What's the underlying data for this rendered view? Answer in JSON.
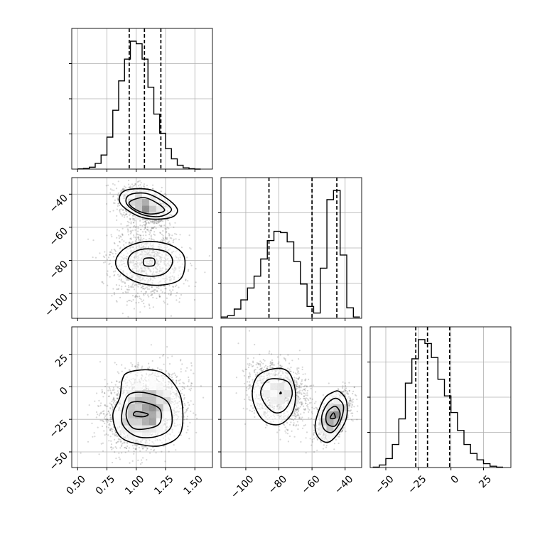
{
  "chart_data": {
    "type": "corner-plot",
    "description_note": "",
    "parameters": [
      {
        "range": [
          0.45,
          1.65
        ],
        "ticks": [
          0.5,
          0.75,
          1.0,
          1.25,
          1.5
        ],
        "tick_labels": [
          "0.50",
          "0.75",
          "1.00",
          "1.25",
          "1.50"
        ],
        "quantiles": [
          0.94,
          1.07,
          1.21
        ]
      },
      {
        "range": [
          -115,
          -30
        ],
        "ticks": [
          -100,
          -80,
          -60,
          -40
        ],
        "tick_labels": [
          "−100",
          "−80",
          "−60",
          "−40"
        ],
        "quantiles": [
          -86,
          -60,
          -45
        ]
      },
      {
        "range": [
          -62,
          46
        ],
        "ticks": [
          -50,
          -25,
          0,
          25
        ],
        "tick_labels": [
          "−50",
          "−25",
          "0",
          "25"
        ],
        "quantiles": [
          -27,
          -18,
          -1
        ]
      }
    ],
    "histograms": [
      {
        "param": 0,
        "bins": [
          0.5,
          0.55,
          0.6,
          0.65,
          0.7,
          0.75,
          0.8,
          0.85,
          0.9,
          0.95,
          1.0,
          1.05,
          1.1,
          1.15,
          1.2,
          1.25,
          1.3,
          1.35,
          1.4,
          1.45,
          1.5,
          1.55
        ],
        "counts": [
          0.2,
          0.5,
          1.5,
          4.5,
          11,
          25,
          46,
          69,
          86,
          100,
          98,
          86,
          64,
          43,
          28,
          16,
          8,
          3,
          1,
          0.3,
          0
        ]
      },
      {
        "param": 1,
        "bins": [
          -115,
          -111,
          -107,
          -103,
          -99,
          -95,
          -91,
          -87,
          -83,
          -79,
          -75,
          -71,
          -67,
          -63,
          -59,
          -55,
          -51,
          -47,
          -43,
          -39,
          -35,
          -31
        ],
        "counts": [
          1,
          2,
          7,
          14,
          23,
          32,
          45,
          59,
          66,
          65,
          58,
          43,
          26,
          9,
          4,
          38,
          90,
          97,
          48,
          8,
          1
        ]
      },
      {
        "param": 2,
        "bins": [
          -60,
          -55,
          -50,
          -45,
          -40,
          -35,
          -30,
          -25,
          -20,
          -15,
          -10,
          -5,
          0,
          5,
          10,
          15,
          20,
          25,
          30,
          35,
          40
        ],
        "counts": [
          0.3,
          2,
          7,
          18,
          38,
          66,
          85,
          100,
          97,
          86,
          69,
          56,
          43,
          29,
          18,
          11,
          6,
          3,
          1,
          0.3
        ]
      }
    ],
    "scatter_panels": [
      {
        "x_param": 0,
        "y_param": 1,
        "blobs": [
          {
            "center": [
              1.06,
              -47
            ],
            "sd": [
              0.1,
              5.5
            ],
            "rho": -0.35,
            "weight": 0.5
          },
          {
            "center": [
              1.09,
              -81
            ],
            "sd": [
              0.15,
              11
            ],
            "rho": 0.0,
            "weight": 0.5
          }
        ],
        "contours": [
          {
            "points": [
              [
                1.1,
                -37
              ],
              [
                1.25,
                -42
              ],
              [
                1.35,
                -49
              ],
              [
                1.3,
                -54
              ],
              [
                1.12,
                -55
              ],
              [
                0.98,
                -52
              ],
              [
                0.86,
                -45
              ],
              [
                0.9,
                -38
              ]
            ]
          },
          {
            "points": [
              [
                1.08,
                -39.5
              ],
              [
                1.22,
                -44
              ],
              [
                1.3,
                -49.5
              ],
              [
                1.2,
                -53.5
              ],
              [
                1.04,
                -52
              ],
              [
                0.92,
                -46
              ],
              [
                0.94,
                -40.5
              ]
            ]
          },
          {
            "points": [
              [
                1.06,
                -42
              ],
              [
                1.18,
                -45.5
              ],
              [
                1.24,
                -50
              ],
              [
                1.12,
                -52
              ],
              [
                1.0,
                -49.5
              ],
              [
                0.94,
                -45
              ]
            ]
          },
          {
            "points": [
              [
                1.1,
                -68.5
              ],
              [
                1.3,
                -71
              ],
              [
                1.41,
                -78
              ],
              [
                1.38,
                -91
              ],
              [
                1.2,
                -95
              ],
              [
                1.0,
                -93
              ],
              [
                0.85,
                -86
              ],
              [
                0.83,
                -79
              ],
              [
                0.92,
                -72
              ]
            ]
          },
          {
            "points": [
              [
                1.1,
                -73
              ],
              [
                1.26,
                -75
              ],
              [
                1.31,
                -81
              ],
              [
                1.24,
                -88
              ],
              [
                1.1,
                -89.5
              ],
              [
                0.96,
                -86.5
              ],
              [
                0.93,
                -80
              ],
              [
                0.98,
                -75
              ]
            ]
          },
          {
            "points": [
              [
                1.07,
                -79
              ],
              [
                1.15,
                -79
              ],
              [
                1.15,
                -83
              ],
              [
                1.07,
                -83
              ]
            ]
          }
        ]
      },
      {
        "x_param": 0,
        "y_param": 2,
        "blobs": [
          {
            "center": [
              1.07,
              -18
            ],
            "sd": [
              0.16,
              14
            ],
            "rho": 0.2,
            "weight": 1.0
          }
        ],
        "contours": [
          {
            "points": [
              [
                0.93,
                11
              ],
              [
                1.1,
                13
              ],
              [
                1.25,
                9
              ],
              [
                1.38,
                -8
              ],
              [
                1.38,
                -35
              ],
              [
                1.22,
                -45
              ],
              [
                1.02,
                -44
              ],
              [
                0.86,
                -38
              ],
              [
                0.8,
                -22
              ],
              [
                0.86,
                -8
              ],
              [
                0.88,
                5
              ]
            ]
          },
          {
            "points": [
              [
                0.96,
                -5
              ],
              [
                1.1,
                -5
              ],
              [
                1.27,
                -12
              ],
              [
                1.3,
                -30
              ],
              [
                1.18,
                -38
              ],
              [
                1.0,
                -38
              ],
              [
                0.88,
                -28
              ],
              [
                0.9,
                -12
              ]
            ]
          },
          {
            "points": [
              [
                0.96,
                -12
              ],
              [
                1.07,
                -12
              ],
              [
                1.2,
                -17
              ],
              [
                1.2,
                -28
              ],
              [
                1.1,
                -32
              ],
              [
                0.98,
                -32
              ],
              [
                0.92,
                -25
              ],
              [
                0.92,
                -17
              ]
            ]
          },
          {
            "points": [
              [
                1.0,
                -19
              ],
              [
                1.1,
                -21
              ],
              [
                1.06,
                -23
              ],
              [
                0.98,
                -22
              ]
            ]
          }
        ]
      },
      {
        "x_param": 1,
        "y_param": 2,
        "blobs": [
          {
            "center": [
              -80,
              -5
            ],
            "sd": [
              9,
              12
            ],
            "rho": -0.3,
            "weight": 0.5
          },
          {
            "center": [
              -47,
              -23
            ],
            "sd": [
              5,
              9
            ],
            "rho": 0.55,
            "weight": 0.5
          }
        ],
        "contours": [
          {
            "points": [
              [
                -82,
                14
              ],
              [
                -74,
                11
              ],
              [
                -70,
                -4
              ],
              [
                -72,
                -20
              ],
              [
                -80,
                -29
              ],
              [
                -90,
                -25
              ],
              [
                -96,
                -8
              ],
              [
                -93,
                8
              ]
            ]
          },
          {
            "points": [
              [
                -80,
                6
              ],
              [
                -74,
                3
              ],
              [
                -72,
                -6
              ],
              [
                -76,
                -17
              ],
              [
                -82,
                -20
              ],
              [
                -88,
                -14
              ],
              [
                -91,
                -4
              ],
              [
                -87,
                5
              ]
            ]
          },
          {
            "points": [
              [
                -79,
                -4
              ],
              [
                -78.5,
                -5
              ],
              [
                -79.4,
                -5.4
              ]
            ]
          },
          {
            "points": [
              [
                -43,
                -4
              ],
              [
                -39,
                -12
              ],
              [
                -40,
                -27
              ],
              [
                -49,
                -42
              ],
              [
                -56,
                -39
              ],
              [
                -58,
                -28
              ],
              [
                -53,
                -10
              ],
              [
                -47,
                -4
              ]
            ]
          },
          {
            "points": [
              [
                -45,
                -9
              ],
              [
                -41,
                -15
              ],
              [
                -43,
                -27
              ],
              [
                -48,
                -35
              ],
              [
                -53,
                -32
              ],
              [
                -54,
                -22
              ],
              [
                -50,
                -12
              ]
            ]
          },
          {
            "points": [
              [
                -46,
                -15
              ],
              [
                -43,
                -21
              ],
              [
                -46,
                -30
              ],
              [
                -51,
                -28
              ],
              [
                -51,
                -20
              ]
            ]
          },
          {
            "points": [
              [
                -47,
                -20
              ],
              [
                -46,
                -24
              ],
              [
                -49,
                -24
              ]
            ]
          }
        ]
      }
    ]
  }
}
